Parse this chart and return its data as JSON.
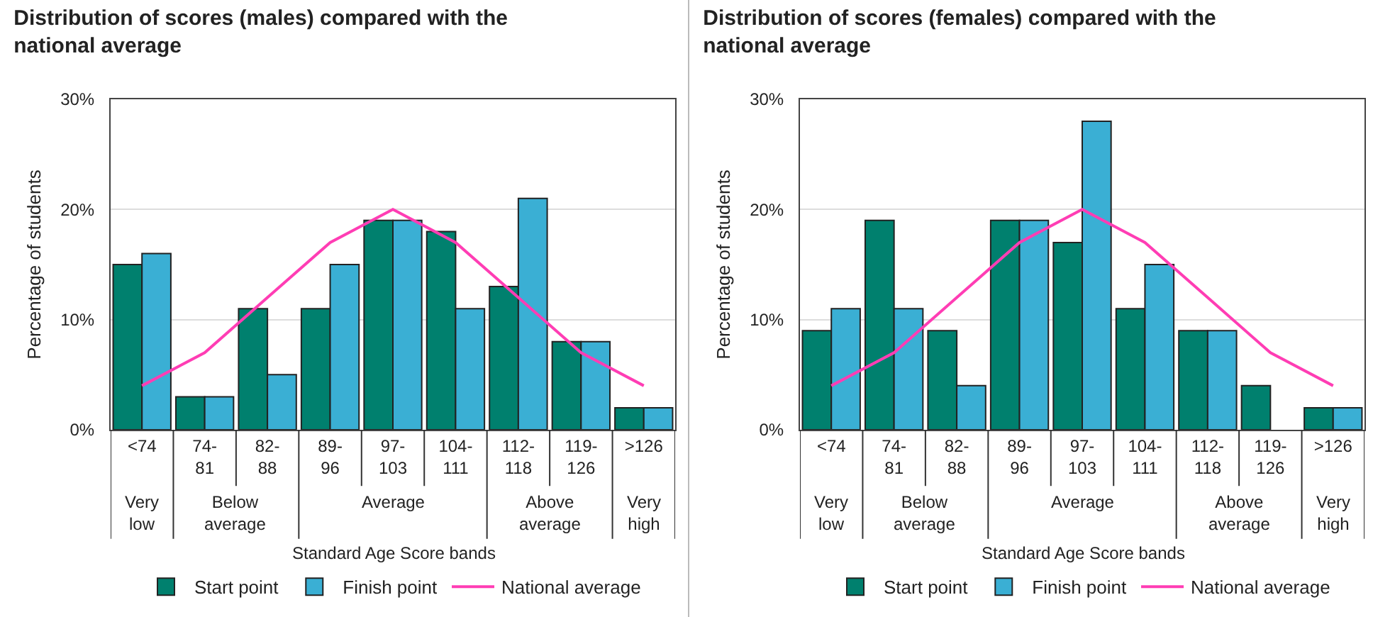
{
  "chart_data": [
    {
      "type": "bar",
      "title": "Distribution of scores (males) compared with the national average",
      "xlabel": "Standard Age Score bands",
      "ylabel": "Percentage of students",
      "categories": [
        "<74",
        "74-81",
        "82-88",
        "89-96",
        "97-103",
        "104-111",
        "112-118",
        "119-126",
        ">126"
      ],
      "series": [
        {
          "name": "Start point",
          "color": "#00806e",
          "values": [
            15,
            3,
            11,
            11,
            19,
            18,
            13,
            8,
            2
          ]
        },
        {
          "name": "Finish point",
          "color": "#3aafd4",
          "values": [
            16,
            3,
            5,
            15,
            19,
            11,
            21,
            8,
            2
          ]
        },
        {
          "name": "National average",
          "type": "line",
          "color": "#ff3db4",
          "values": [
            4,
            7,
            12,
            17,
            20,
            17,
            12,
            7,
            4
          ]
        }
      ],
      "annotations": [
        "Very low",
        "Below average",
        "Average",
        "Above average",
        "Very high"
      ],
      "ylim": [
        0,
        30
      ],
      "yticks": [
        {
          "value": 0,
          "label": "0%"
        },
        {
          "value": 10,
          "label": "10%"
        },
        {
          "value": 20,
          "label": "20%"
        },
        {
          "value": 30,
          "label": "30%"
        }
      ],
      "grid": "y",
      "legend": "bottom"
    },
    {
      "type": "bar",
      "title": "Distribution of scores (females) compared with the national average",
      "xlabel": "Standard Age Score bands",
      "ylabel": "Percentage of students",
      "categories": [
        "<74",
        "74-81",
        "82-88",
        "89-96",
        "97-103",
        "104-111",
        "112-118",
        "119-126",
        ">126"
      ],
      "series": [
        {
          "name": "Start point",
          "color": "#00806e",
          "values": [
            9,
            19,
            9,
            19,
            17,
            11,
            9,
            4,
            2
          ]
        },
        {
          "name": "Finish point",
          "color": "#3aafd4",
          "values": [
            11,
            11,
            4,
            19,
            28,
            15,
            9,
            null,
            2
          ]
        },
        {
          "name": "National average",
          "type": "line",
          "color": "#ff3db4",
          "values": [
            4,
            7,
            12,
            17,
            20,
            17,
            12,
            7,
            4
          ]
        }
      ],
      "annotations": [
        "Very low",
        "Below average",
        "Average",
        "Above average",
        "Very high"
      ],
      "ylim": [
        0,
        30
      ],
      "yticks": [
        {
          "value": 0,
          "label": "0%"
        },
        {
          "value": 10,
          "label": "10%"
        },
        {
          "value": 20,
          "label": "20%"
        },
        {
          "value": 30,
          "label": "30%"
        }
      ],
      "grid": "y",
      "legend": "bottom"
    }
  ]
}
